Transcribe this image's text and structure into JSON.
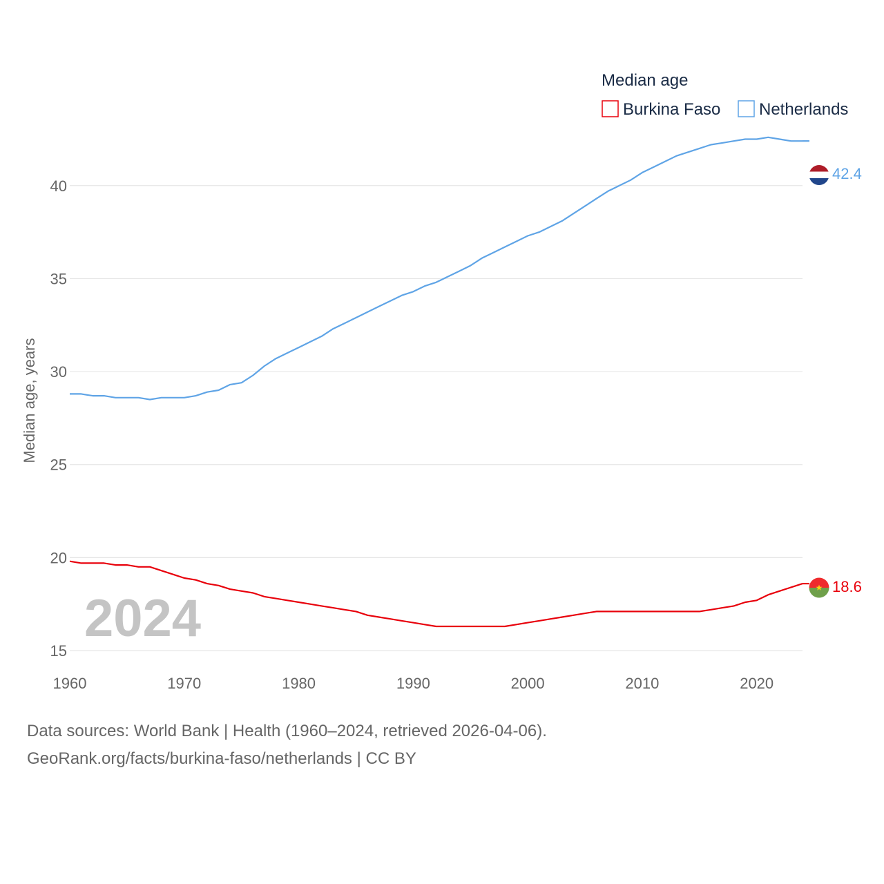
{
  "chart_data": {
    "type": "line",
    "title": "Median age",
    "ylabel": "Median age, years",
    "xlabel": "",
    "xlim": [
      1960,
      2024
    ],
    "ylim": [
      15,
      43
    ],
    "x_ticks": [
      1960,
      1970,
      1980,
      1990,
      2000,
      2010,
      2020
    ],
    "y_ticks": [
      15,
      20,
      25,
      30,
      35,
      40
    ],
    "grid": true,
    "legend_position": "top-right",
    "highlight_year": "2024",
    "x": [
      1960,
      1961,
      1962,
      1963,
      1964,
      1965,
      1966,
      1967,
      1968,
      1969,
      1970,
      1971,
      1972,
      1973,
      1974,
      1975,
      1976,
      1977,
      1978,
      1979,
      1980,
      1981,
      1982,
      1983,
      1984,
      1985,
      1986,
      1987,
      1988,
      1989,
      1990,
      1991,
      1992,
      1993,
      1994,
      1995,
      1996,
      1997,
      1998,
      1999,
      2000,
      2001,
      2002,
      2003,
      2004,
      2005,
      2006,
      2007,
      2008,
      2009,
      2010,
      2011,
      2012,
      2013,
      2014,
      2015,
      2016,
      2017,
      2018,
      2019,
      2020,
      2021,
      2022,
      2023,
      2024
    ],
    "series": [
      {
        "name": "Burkina Faso",
        "color": "#e8000b",
        "end_label": "18.6",
        "flag": "burkina-faso-flag",
        "values": [
          19.8,
          19.7,
          19.7,
          19.7,
          19.6,
          19.6,
          19.5,
          19.5,
          19.3,
          19.1,
          18.9,
          18.8,
          18.6,
          18.5,
          18.3,
          18.2,
          18.1,
          17.9,
          17.8,
          17.7,
          17.6,
          17.5,
          17.4,
          17.3,
          17.2,
          17.1,
          16.9,
          16.8,
          16.7,
          16.6,
          16.5,
          16.4,
          16.3,
          16.3,
          16.3,
          16.3,
          16.3,
          16.3,
          16.3,
          16.4,
          16.5,
          16.6,
          16.7,
          16.8,
          16.9,
          17.0,
          17.1,
          17.1,
          17.1,
          17.1,
          17.1,
          17.1,
          17.1,
          17.1,
          17.1,
          17.1,
          17.2,
          17.3,
          17.4,
          17.6,
          17.7,
          18.0,
          18.2,
          18.4,
          18.6
        ]
      },
      {
        "name": "Netherlands",
        "color": "#5fa4e6",
        "end_label": "42.4",
        "flag": "netherlands-flag",
        "values": [
          28.8,
          28.8,
          28.7,
          28.7,
          28.6,
          28.6,
          28.6,
          28.5,
          28.6,
          28.6,
          28.6,
          28.7,
          28.9,
          29.0,
          29.3,
          29.4,
          29.8,
          30.3,
          30.7,
          31.0,
          31.3,
          31.6,
          31.9,
          32.3,
          32.6,
          32.9,
          33.2,
          33.5,
          33.8,
          34.1,
          34.3,
          34.6,
          34.8,
          35.1,
          35.4,
          35.7,
          36.1,
          36.4,
          36.7,
          37.0,
          37.3,
          37.5,
          37.8,
          38.1,
          38.5,
          38.9,
          39.3,
          39.7,
          40.0,
          40.3,
          40.7,
          41.0,
          41.3,
          41.6,
          41.8,
          42.0,
          42.2,
          42.3,
          42.4,
          42.5,
          42.5,
          42.6,
          42.5,
          42.4,
          42.4
        ]
      }
    ]
  },
  "footer": {
    "line1": "Data sources: World Bank | Health (1960–2024, retrieved 2026-04-06).",
    "line2": "GeoRank.org/facts/burkina-faso/netherlands | CC BY"
  }
}
